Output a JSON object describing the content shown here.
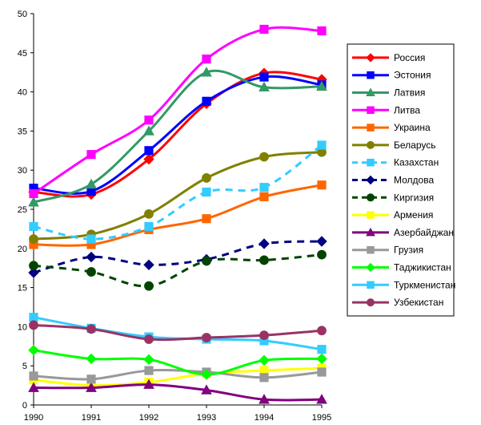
{
  "chart_data": {
    "type": "line",
    "x": [
      "1990",
      "1991",
      "1992",
      "1993",
      "1994",
      "1995"
    ],
    "ylim": [
      0,
      50
    ],
    "yticks": [
      0,
      5,
      10,
      15,
      20,
      25,
      30,
      35,
      40,
      45,
      50
    ],
    "ytick_labels": [
      "0",
      "5",
      "10",
      "15",
      "20",
      "25",
      "30",
      "35",
      "40",
      "45",
      "50"
    ],
    "grid": false,
    "legend_position": "right",
    "series": [
      {
        "name": "Россия",
        "color": "#ff0000",
        "marker": "diamond",
        "dash": "solid",
        "values": [
          27.2,
          26.9,
          31.4,
          38.5,
          42.4,
          41.6
        ]
      },
      {
        "name": "Эстония",
        "color": "#0000ff",
        "marker": "square",
        "dash": "solid",
        "values": [
          27.7,
          27.3,
          32.5,
          38.8,
          41.9,
          40.9
        ]
      },
      {
        "name": "Латвия",
        "color": "#339966",
        "marker": "triangle",
        "dash": "solid",
        "values": [
          25.9,
          28.2,
          35.0,
          42.5,
          40.6,
          40.7
        ]
      },
      {
        "name": "Литва",
        "color": "#ff00ff",
        "marker": "square",
        "dash": "solid",
        "values": [
          27.0,
          32.0,
          36.4,
          44.2,
          48.0,
          47.8
        ]
      },
      {
        "name": "Украина",
        "color": "#ff6600",
        "marker": "square",
        "dash": "solid",
        "values": [
          20.5,
          20.5,
          22.4,
          23.8,
          26.6,
          28.1
        ]
      },
      {
        "name": "Беларусь",
        "color": "#808000",
        "marker": "circle",
        "dash": "solid",
        "values": [
          21.2,
          21.8,
          24.4,
          29.0,
          31.7,
          32.3
        ]
      },
      {
        "name": "Казахстан",
        "color": "#33ccff",
        "marker": "square",
        "dash": "dash",
        "values": [
          22.8,
          21.2,
          22.8,
          27.2,
          27.8,
          33.2
        ]
      },
      {
        "name": "Молдова",
        "color": "#000080",
        "marker": "diamond",
        "dash": "dash",
        "values": [
          16.9,
          18.9,
          17.9,
          18.6,
          20.6,
          20.9
        ]
      },
      {
        "name": "Киргизия",
        "color": "#004400",
        "marker": "circle",
        "dash": "dash",
        "values": [
          17.8,
          17.0,
          15.2,
          18.4,
          18.5,
          19.2
        ]
      },
      {
        "name": "Армения",
        "color": "#ffff00",
        "marker": "square",
        "dash": "solid",
        "values": [
          3.2,
          2.5,
          2.9,
          4.0,
          4.4,
          4.7
        ]
      },
      {
        "name": "Азербайджан",
        "color": "#800080",
        "marker": "triangle",
        "dash": "solid",
        "values": [
          2.2,
          2.2,
          2.6,
          1.9,
          0.7,
          0.7
        ]
      },
      {
        "name": "Грузия",
        "color": "#999999",
        "marker": "square",
        "dash": "solid",
        "values": [
          3.7,
          3.3,
          4.4,
          4.2,
          3.5,
          4.2
        ]
      },
      {
        "name": "Таджикистан",
        "color": "#00ff00",
        "marker": "diamond",
        "dash": "solid",
        "values": [
          7.0,
          5.9,
          5.8,
          3.9,
          5.7,
          5.9
        ]
      },
      {
        "name": "Туркменистан",
        "color": "#33ccff",
        "marker": "square",
        "dash": "solid",
        "values": [
          11.2,
          9.8,
          8.7,
          8.4,
          8.2,
          7.1
        ]
      },
      {
        "name": "Узбекистан",
        "color": "#993366",
        "marker": "circle",
        "dash": "solid",
        "values": [
          10.2,
          9.7,
          8.4,
          8.6,
          8.9,
          9.5
        ]
      }
    ]
  }
}
